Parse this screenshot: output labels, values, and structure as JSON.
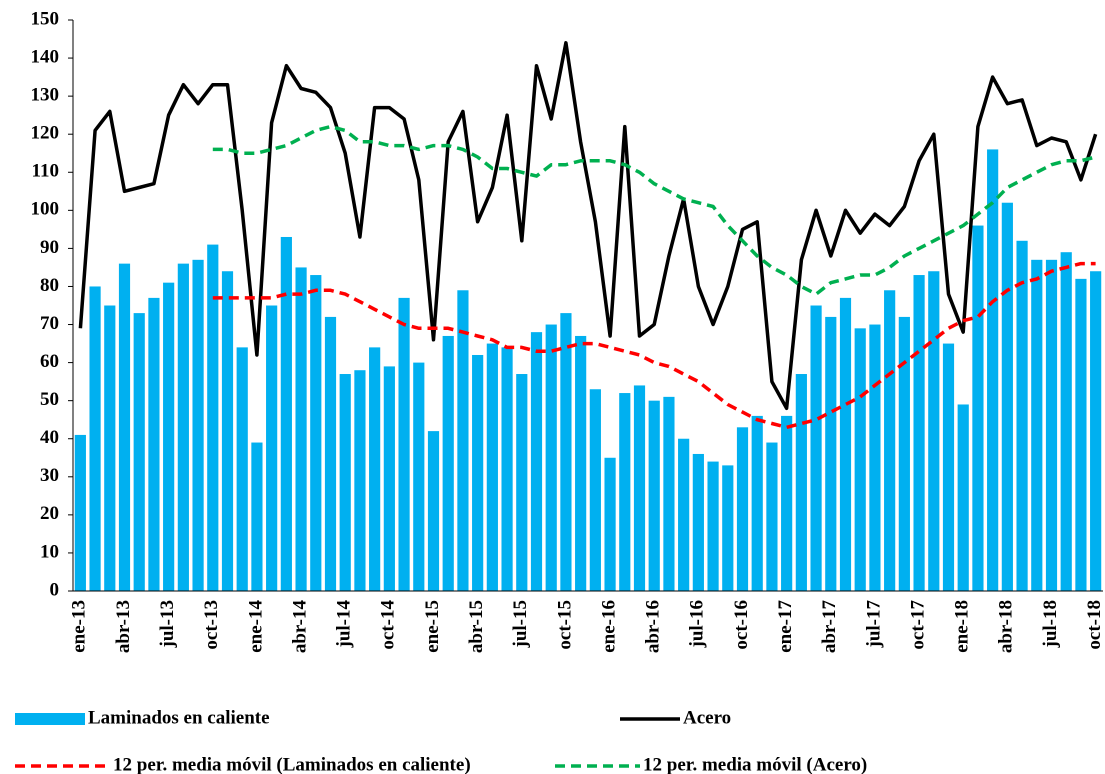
{
  "chart_data": {
    "type": "bar",
    "categories": [
      "ene-13",
      null,
      null,
      "abr-13",
      null,
      null,
      "jul-13",
      null,
      null,
      "oct-13",
      null,
      null,
      "ene-14",
      null,
      null,
      "abr-14",
      null,
      null,
      "jul-14",
      null,
      null,
      "oct-14",
      null,
      null,
      "ene-15",
      null,
      null,
      "abr-15",
      null,
      null,
      "jul-15",
      null,
      null,
      "oct-15",
      null,
      null,
      "ene-16",
      null,
      null,
      "abr-16",
      null,
      null,
      "jul-16",
      null,
      null,
      "oct-16",
      null,
      null,
      "ene-17",
      null,
      null,
      "abr-17",
      null,
      null,
      "jul-17",
      null,
      null,
      "oct-17",
      null,
      null,
      "ene-18",
      null,
      null,
      "abr-18",
      null,
      null,
      "jul-18",
      null,
      null,
      "oct-18"
    ],
    "series": [
      {
        "name": "Laminados en caliente",
        "type": "bar",
        "color": "#00b0f0",
        "values": [
          41,
          80,
          75,
          86,
          73,
          77,
          81,
          86,
          87,
          91,
          84,
          64,
          39,
          75,
          93,
          85,
          83,
          72,
          57,
          58,
          64,
          59,
          77,
          60,
          42,
          67,
          79,
          62,
          65,
          64,
          57,
          68,
          70,
          73,
          67,
          53,
          35,
          52,
          54,
          50,
          51,
          40,
          36,
          34,
          33,
          43,
          46,
          39,
          46,
          57,
          75,
          72,
          77,
          69,
          70,
          79,
          72,
          83,
          84,
          65,
          49,
          96,
          116,
          102,
          92,
          87,
          87,
          89,
          82,
          84
        ]
      },
      {
        "name": "Acero",
        "type": "line",
        "color": "#000000",
        "values": [
          69,
          121,
          126,
          105,
          106,
          107,
          125,
          133,
          128,
          133,
          133,
          100,
          62,
          123,
          138,
          132,
          131,
          127,
          115,
          93,
          127,
          127,
          124,
          108,
          66,
          118,
          126,
          97,
          106,
          125,
          92,
          138,
          124,
          144,
          118,
          97,
          67,
          122,
          67,
          70,
          88,
          103,
          80,
          70,
          80,
          95,
          97,
          55,
          48,
          87,
          100,
          88,
          100,
          94,
          99,
          96,
          101,
          113,
          120,
          78,
          68,
          122,
          135,
          128,
          129,
          117,
          119,
          118,
          108,
          120
        ]
      },
      {
        "name": "12 per. media móvil (Laminados en caliente)",
        "type": "line",
        "dashed": true,
        "color": "#ff0000",
        "values": [
          null,
          null,
          null,
          null,
          null,
          null,
          null,
          null,
          null,
          77,
          77,
          77,
          77,
          77,
          78,
          78,
          79,
          79,
          78,
          76,
          74,
          72,
          70,
          69,
          69,
          69,
          68,
          67,
          66,
          64,
          64,
          63,
          63,
          64,
          65,
          65,
          64,
          63,
          62,
          60,
          59,
          57,
          55,
          52,
          49,
          47,
          45,
          44,
          43,
          44,
          45,
          47,
          49,
          51,
          54,
          57,
          60,
          63,
          66,
          69,
          71,
          72,
          76,
          79,
          81,
          82,
          84,
          85,
          86,
          86
        ]
      },
      {
        "name": "12 per. media móvil (Acero)",
        "type": "line",
        "dashed": true,
        "color": "#00b050",
        "values": [
          null,
          null,
          null,
          null,
          null,
          null,
          null,
          null,
          null,
          116,
          116,
          115,
          115,
          116,
          117,
          119,
          121,
          122,
          121,
          118,
          118,
          117,
          117,
          116,
          117,
          117,
          116,
          114,
          111,
          111,
          110,
          109,
          112,
          112,
          113,
          113,
          113,
          112,
          110,
          107,
          105,
          103,
          102,
          101,
          96,
          92,
          88,
          85,
          83,
          80,
          78,
          81,
          82,
          83,
          83,
          85,
          88,
          90,
          92,
          94,
          96,
          99,
          102,
          106,
          108,
          110,
          112,
          113,
          113,
          114
        ]
      }
    ],
    "ylim": [
      0,
      150
    ],
    "yticks": [
      0,
      10,
      20,
      30,
      40,
      50,
      60,
      70,
      80,
      90,
      100,
      110,
      120,
      130,
      140,
      150
    ],
    "grid": false
  }
}
